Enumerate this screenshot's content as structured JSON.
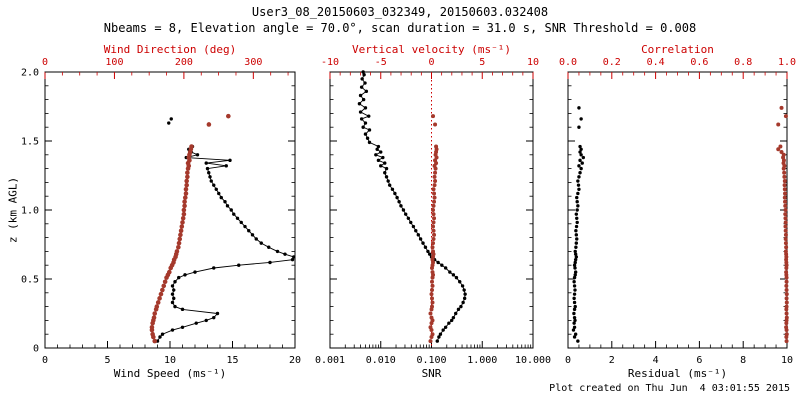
{
  "page": {
    "title": "User3_08_20150603_032349, 20150603.032408",
    "subtitle": "Nbeams = 8, Elevation angle = 70.0°, scan duration = 31.0 s, SNR Threshold = 0.008",
    "footer": "Plot created on Thu Jun  4 03:01:55 2015",
    "ylabel": "z (km AGL)"
  },
  "colors": {
    "axis_red": "#cc0000",
    "marker_red": "#a5392c",
    "line_black": "#000000",
    "background": "#ffffff"
  },
  "z_levels": {
    "main": [
      0.05,
      0.08,
      0.1,
      0.13,
      0.15,
      0.18,
      0.2,
      0.22,
      0.25,
      0.28,
      0.3,
      0.33,
      0.36,
      0.39,
      0.42,
      0.45,
      0.48,
      0.51,
      0.53,
      0.55,
      0.58,
      0.6,
      0.62,
      0.64,
      0.66,
      0.68,
      0.7,
      0.73,
      0.76,
      0.79,
      0.82,
      0.85,
      0.88,
      0.91,
      0.94,
      0.97,
      1.0,
      1.03,
      1.06,
      1.09,
      1.12,
      1.15,
      1.18,
      1.21,
      1.24,
      1.27,
      1.3,
      1.32,
      1.34,
      1.36,
      1.38,
      1.4,
      1.42,
      1.44,
      1.46
    ],
    "snr_full": [
      0.05,
      0.08,
      0.1,
      0.13,
      0.15,
      0.18,
      0.2,
      0.22,
      0.25,
      0.28,
      0.3,
      0.33,
      0.36,
      0.39,
      0.42,
      0.45,
      0.48,
      0.51,
      0.53,
      0.55,
      0.58,
      0.6,
      0.62,
      0.64,
      0.66,
      0.68,
      0.7,
      0.73,
      0.76,
      0.79,
      0.82,
      0.85,
      0.88,
      0.91,
      0.94,
      0.97,
      1.0,
      1.03,
      1.06,
      1.09,
      1.12,
      1.15,
      1.18,
      1.21,
      1.24,
      1.27,
      1.3,
      1.32,
      1.34,
      1.36,
      1.38,
      1.4,
      1.42,
      1.44,
      1.46,
      1.49,
      1.52,
      1.55,
      1.58,
      1.6,
      1.63,
      1.66,
      1.68,
      1.71,
      1.74,
      1.77,
      1.8,
      1.83,
      1.86,
      1.89,
      1.92,
      1.95,
      1.98,
      2.0
    ]
  },
  "chart_data": [
    {
      "type": "scatter",
      "name": "wind-panel",
      "ylim": [
        0,
        2.0
      ],
      "yticks": [
        0,
        0.5,
        1.0,
        1.5,
        2.0
      ],
      "ytick_labels": [
        "0",
        "0.5",
        "1.0",
        "1.5",
        "2.0"
      ],
      "show_ytick_labels": true,
      "bottom_axis": {
        "label": "Wind Speed (ms⁻¹)",
        "lim": [
          0,
          20
        ],
        "ticks": [
          0,
          5,
          10,
          15,
          20
        ],
        "tick_labels": [
          "0",
          "5",
          "10",
          "15",
          "20"
        ],
        "scale": "linear",
        "minor_div": 5,
        "color": "#000000"
      },
      "top_axis": {
        "label": "Wind Direction (deg)",
        "lim": [
          0,
          360
        ],
        "ticks": [
          0,
          100,
          200,
          300
        ],
        "tick_labels": [
          "0",
          "100",
          "200",
          "300"
        ],
        "scale": "linear",
        "minor_div": 4,
        "color": "#cc0000"
      },
      "series": [
        {
          "name": "wind_speed",
          "axis": "bottom",
          "color": "#000000",
          "line": true,
          "marker": 1.7,
          "segments": [
            {
              "z_ref": "main",
              "v": [
                9.0,
                9.2,
                9.4,
                10.2,
                11.0,
                12.1,
                12.9,
                13.5,
                13.8,
                11.0,
                10.4,
                10.2,
                10.3,
                10.2,
                10.3,
                10.2,
                10.4,
                10.7,
                11.2,
                12.0,
                13.5,
                15.5,
                18.0,
                19.8,
                19.9,
                19.2,
                18.6,
                17.9,
                17.3,
                16.9,
                16.6,
                16.3,
                16.0,
                15.7,
                15.4,
                15.1,
                14.9,
                14.6,
                14.4,
                14.1,
                13.9,
                13.7,
                13.5,
                13.3,
                13.2,
                13.1,
                13.0,
                14.5,
                12.9,
                14.8,
                11.3,
                12.2,
                11.7,
                11.5,
                11.8
              ]
            },
            {
              "z": [
                1.63
              ],
              "v": [
                9.9
              ]
            },
            {
              "z": [
                1.66
              ],
              "v": [
                10.1
              ]
            }
          ]
        },
        {
          "name": "wind_direction",
          "axis": "top",
          "color": "#a5392c",
          "line": false,
          "marker": 2.3,
          "segments": [
            {
              "z_ref": "main",
              "v": [
                158,
                156,
                155,
                154,
                154,
                155,
                156,
                157,
                158,
                160,
                161,
                163,
                165,
                167,
                169,
                171,
                173,
                175,
                177,
                179,
                181,
                183,
                185,
                186,
                188,
                189,
                190,
                192,
                193,
                194,
                195,
                196,
                197,
                198,
                199,
                200,
                200,
                201,
                201,
                202,
                203,
                203,
                204,
                204,
                205,
                205,
                206,
                207,
                206,
                208,
                207,
                208,
                209,
                210,
                211
              ]
            },
            {
              "z": [
                1.62
              ],
              "v": [
                236
              ]
            },
            {
              "z": [
                1.68
              ],
              "v": [
                264
              ]
            }
          ]
        }
      ]
    },
    {
      "type": "scatter",
      "name": "snr-panel",
      "ylim": [
        0,
        2.0
      ],
      "yticks": [
        0,
        0.5,
        1.0,
        1.5,
        2.0
      ],
      "ytick_labels": [
        "0",
        "0.5",
        "1.0",
        "1.5",
        "2.0"
      ],
      "show_ytick_labels": false,
      "bottom_axis": {
        "label": "SNR",
        "lim": [
          0.001,
          10
        ],
        "ticks": [
          0.001,
          0.01,
          0.1,
          1,
          10
        ],
        "tick_labels": [
          "0.001",
          "0.010",
          "0.100",
          "1.000",
          "10.000"
        ],
        "scale": "log",
        "minor_div": 0,
        "color": "#000000"
      },
      "top_axis": {
        "label": "Vertical velocity (ms⁻¹)",
        "lim": [
          -10,
          10
        ],
        "ticks": [
          -10,
          -5,
          0,
          5,
          10
        ],
        "tick_labels": [
          "-10",
          "-5",
          "0",
          "5",
          "10"
        ],
        "scale": "linear",
        "minor_div": 5,
        "color": "#cc0000"
      },
      "refline": {
        "axis": "top",
        "value": 0,
        "color": "#cc0000",
        "style": "dotted"
      },
      "series": [
        {
          "name": "snr",
          "axis": "bottom",
          "color": "#000000",
          "line": true,
          "marker": 1.7,
          "segments": [
            {
              "z_ref": "snr_full",
              "v": [
                0.13,
                0.14,
                0.15,
                0.17,
                0.19,
                0.22,
                0.25,
                0.27,
                0.3,
                0.34,
                0.38,
                0.42,
                0.45,
                0.46,
                0.44,
                0.41,
                0.36,
                0.31,
                0.27,
                0.23,
                0.19,
                0.16,
                0.135,
                0.115,
                0.1,
                0.092,
                0.085,
                0.076,
                0.068,
                0.061,
                0.055,
                0.049,
                0.044,
                0.039,
                0.035,
                0.031,
                0.028,
                0.025,
                0.023,
                0.021,
                0.019,
                0.017,
                0.015,
                0.014,
                0.013,
                0.012,
                0.013,
                0.01,
                0.012,
                0.009,
                0.011,
                0.008,
                0.01,
                0.0085,
                0.009,
                0.006,
                0.0055,
                0.005,
                0.006,
                0.0045,
                0.005,
                0.0042,
                0.0058,
                0.004,
                0.005,
                0.0038,
                0.0046,
                0.004,
                0.0052,
                0.0042,
                0.0049,
                0.0043,
                0.0047,
                0.0045
              ]
            }
          ]
        },
        {
          "name": "vertical_velocity",
          "axis": "top",
          "color": "#a5392c",
          "line": false,
          "marker": 2.0,
          "segments": [
            {
              "z_ref": "main",
              "v": [
                -0.1,
                0.0,
                0.1,
                0.0,
                -0.1,
                0.0,
                0.1,
                0.0,
                -0.1,
                0.0,
                0.05,
                0.1,
                0.05,
                0.0,
                0.05,
                0.1,
                0.05,
                0.1,
                0.15,
                0.1,
                0.05,
                0.1,
                0.15,
                0.1,
                0.15,
                0.2,
                0.15,
                0.1,
                0.15,
                0.2,
                0.25,
                0.2,
                0.15,
                0.2,
                0.25,
                0.2,
                0.15,
                0.2,
                0.25,
                0.3,
                0.25,
                0.2,
                0.3,
                0.35,
                0.3,
                0.35,
                0.4,
                0.3,
                0.45,
                0.35,
                0.5,
                0.4,
                0.45,
                0.5,
                0.45
              ]
            },
            {
              "z": [
                1.62
              ],
              "v": [
                0.35
              ]
            },
            {
              "z": [
                1.68
              ],
              "v": [
                0.15
              ]
            }
          ]
        }
      ]
    },
    {
      "type": "scatter",
      "name": "residual-panel",
      "ylim": [
        0,
        2.0
      ],
      "yticks": [
        0,
        0.5,
        1.0,
        1.5,
        2.0
      ],
      "ytick_labels": [
        "0",
        "0.5",
        "1.0",
        "1.5",
        "2.0"
      ],
      "show_ytick_labels": false,
      "bottom_axis": {
        "label": "Residual (ms⁻¹)",
        "lim": [
          0,
          10
        ],
        "ticks": [
          0,
          2,
          4,
          6,
          8,
          10
        ],
        "tick_labels": [
          "0",
          "2",
          "4",
          "6",
          "8",
          "10"
        ],
        "scale": "linear",
        "minor_div": 4,
        "color": "#000000"
      },
      "top_axis": {
        "label": "Correlation",
        "lim": [
          0,
          1
        ],
        "ticks": [
          0,
          0.2,
          0.4,
          0.6,
          0.8,
          1.0
        ],
        "tick_labels": [
          "0.0",
          "0.2",
          "0.4",
          "0.6",
          "0.8",
          "1.0"
        ],
        "scale": "linear",
        "minor_div": 4,
        "color": "#cc0000"
      },
      "series": [
        {
          "name": "residual",
          "axis": "bottom",
          "color": "#000000",
          "line": false,
          "marker": 1.7,
          "segments": [
            {
              "z_ref": "main",
              "v": [
                0.45,
                0.3,
                0.35,
                0.25,
                0.3,
                0.28,
                0.32,
                0.3,
                0.27,
                0.3,
                0.33,
                0.3,
                0.28,
                0.3,
                0.32,
                0.3,
                0.28,
                0.3,
                0.33,
                0.35,
                0.32,
                0.3,
                0.33,
                0.35,
                0.38,
                0.35,
                0.33,
                0.36,
                0.38,
                0.4,
                0.38,
                0.36,
                0.39,
                0.42,
                0.4,
                0.38,
                0.42,
                0.45,
                0.42,
                0.4,
                0.45,
                0.5,
                0.48,
                0.45,
                0.5,
                0.55,
                0.6,
                0.5,
                0.65,
                0.55,
                0.7,
                0.6,
                0.55,
                0.6,
                0.55
              ]
            },
            {
              "z": [
                1.6
              ],
              "v": [
                0.5
              ]
            },
            {
              "z": [
                1.66
              ],
              "v": [
                0.6
              ]
            },
            {
              "z": [
                1.74
              ],
              "v": [
                0.5
              ]
            }
          ]
        },
        {
          "name": "correlation",
          "axis": "top",
          "color": "#a5392c",
          "line": false,
          "marker": 2.0,
          "segments": [
            {
              "z_ref": "main",
              "v": [
                0.998,
                0.997,
                0.999,
                0.998,
                0.996,
                0.997,
                0.998,
                0.999,
                0.998,
                0.997,
                0.998,
                0.999,
                0.998,
                0.999,
                0.998,
                0.997,
                0.998,
                0.998,
                0.997,
                0.996,
                0.997,
                0.998,
                0.997,
                0.996,
                0.997,
                0.996,
                0.995,
                0.996,
                0.995,
                0.994,
                0.995,
                0.994,
                0.993,
                0.994,
                0.993,
                0.992,
                0.993,
                0.992,
                0.991,
                0.99,
                0.991,
                0.99,
                0.989,
                0.99,
                0.988,
                0.987,
                0.985,
                0.988,
                0.984,
                0.986,
                0.982,
                0.985,
                0.975,
                0.96,
                0.97
              ]
            },
            {
              "z": [
                1.62
              ],
              "v": [
                0.96
              ]
            },
            {
              "z": [
                1.68
              ],
              "v": [
                0.995
              ]
            },
            {
              "z": [
                1.74
              ],
              "v": [
                0.975
              ]
            }
          ]
        }
      ]
    }
  ]
}
